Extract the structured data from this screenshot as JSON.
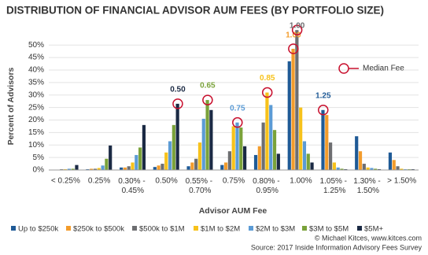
{
  "chart_data": {
    "type": "bar",
    "title": "DISTRIBUTION OF FINANCIAL ADVISOR AUM FEES (BY PORTFOLIO SIZE)",
    "y_label": "Percent of Advisors",
    "x_label": "Advisor AUM Fee",
    "categories": [
      "< 0.25%",
      "0.25%",
      "0.30% - 0.45%",
      "0.50%",
      "0.55% - 0.70%",
      "0.75%",
      "0.80% - 0.95%",
      "1.00%",
      "1.05% - 1.25%",
      "1.30% - 1.50%",
      "> 1.50%"
    ],
    "series": [
      {
        "name": "Up to $250k",
        "color": "#1f5a96",
        "values": [
          0,
          0.3,
          1,
          1.2,
          1.5,
          2,
          6,
          43.5,
          24,
          13.5,
          7
        ]
      },
      {
        "name": "$250k to $500k",
        "color": "#f39c2c",
        "values": [
          0,
          0.5,
          1,
          1.8,
          3,
          3,
          9.5,
          48.5,
          22,
          7.5,
          4
        ]
      },
      {
        "name": "$500k to $1M",
        "color": "#6d6e71",
        "values": [
          0.3,
          0.5,
          1.5,
          2.5,
          4.5,
          7.5,
          19,
          56,
          11,
          2.5,
          1.5
        ]
      },
      {
        "name": "$1M to $2M",
        "color": "#f7c21b",
        "values": [
          0.3,
          0.8,
          3,
          7,
          11,
          17.5,
          31,
          25,
          3,
          1,
          0.5
        ]
      },
      {
        "name": "$2M to $3M",
        "color": "#5b9bd5",
        "values": [
          0.5,
          1.8,
          6,
          11.5,
          20.5,
          19,
          26,
          11.5,
          1,
          0.8,
          0.3
        ]
      },
      {
        "name": "$3M to $5M",
        "color": "#7aa23a",
        "values": [
          0.5,
          4.5,
          9,
          18,
          28,
          17,
          16,
          6.5,
          0.5,
          0.5,
          0.3
        ]
      },
      {
        "name": "$5M+",
        "color": "#1b2a44",
        "values": [
          2,
          9.8,
          18,
          26.5,
          24,
          9.5,
          6.5,
          3,
          0.3,
          0.3,
          0.3
        ]
      }
    ],
    "ylim": [
      0,
      57
    ],
    "yticks": [
      {
        "value": 0,
        "label": "0%"
      },
      {
        "value": 5,
        "label": "5%"
      },
      {
        "value": 10,
        "label": "10%"
      },
      {
        "value": 15,
        "label": "15%"
      },
      {
        "value": 20,
        "label": "20%"
      },
      {
        "value": 25,
        "label": "25%"
      },
      {
        "value": 30,
        "label": "30%"
      },
      {
        "value": 35,
        "label": "35%"
      },
      {
        "value": 40,
        "label": "40%"
      },
      {
        "value": 45,
        "label": "45%"
      },
      {
        "value": 50,
        "label": "50%"
      }
    ],
    "grid": true,
    "median_legend": "Median Fee",
    "median_color": "#c8102e",
    "annotations": [
      {
        "text": "0.50",
        "series": "$5M+",
        "category": "0.50%"
      },
      {
        "text": "0.65",
        "series": "$3M to $5M",
        "category": "0.55% - 0.70%"
      },
      {
        "text": "0.75",
        "series": "$2M to $3M",
        "category": "0.75%"
      },
      {
        "text": "0.85",
        "series": "$1M to $2M",
        "category": "0.80% - 0.95%"
      },
      {
        "text": "1.00",
        "series": "$250k to $500k",
        "category": "1.00%"
      },
      {
        "text": "1.00",
        "series": "$500k to $1M",
        "category": "1.00%"
      },
      {
        "text": "1.25",
        "series": "Up to $250k",
        "category": "1.05% - 1.25%"
      }
    ],
    "credit": "© Michael Kitces, www.kitces.com",
    "source": "Source: 2017 Inside Information Advisory Fees Survey"
  }
}
